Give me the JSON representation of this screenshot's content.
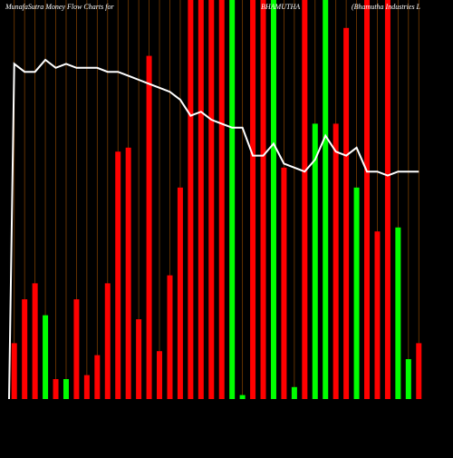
{
  "chart_data": {
    "type": "bar",
    "title": "MunafaSutra  Money Flow  Charts for",
    "symbol": "BHAMUTHA",
    "company": "(Bhamutha  Industries  L",
    "ylim": [
      0,
      100
    ],
    "values": [
      14,
      25,
      29,
      21,
      5,
      5,
      25,
      6,
      11,
      29,
      62,
      63,
      20,
      86,
      12,
      31,
      53,
      100,
      100,
      100,
      100,
      100,
      1,
      100,
      100,
      100,
      58,
      3,
      100,
      69,
      100,
      69,
      93,
      53,
      100,
      42,
      100,
      43,
      10,
      14
    ],
    "colors": [
      "#ff0000",
      "#ff0000",
      "#ff0000",
      "#00ff00",
      "#ff0000",
      "#00ff00",
      "#ff0000",
      "#ff0000",
      "#ff0000",
      "#ff0000",
      "#ff0000",
      "#ff0000",
      "#ff0000",
      "#ff0000",
      "#ff0000",
      "#ff0000",
      "#ff0000",
      "#ff0000",
      "#ff0000",
      "#ff0000",
      "#ff0000",
      "#00ff00",
      "#00ff00",
      "#ff0000",
      "#ff0000",
      "#00ff00",
      "#ff0000",
      "#00ff00",
      "#ff0000",
      "#00ff00",
      "#00ff00",
      "#ff0000",
      "#ff0000",
      "#00ff00",
      "#ff0000",
      "#ff0000",
      "#ff0000",
      "#00ff00",
      "#00ff00",
      "#ff0000"
    ],
    "line": {
      "color": "#ffffff",
      "values": [
        84,
        82,
        82,
        85,
        83,
        84,
        83,
        83,
        83,
        82,
        82,
        81,
        80,
        79,
        78,
        77,
        75,
        71,
        72,
        70,
        69,
        68,
        68,
        61,
        61,
        64,
        59,
        58,
        57,
        60,
        66,
        62,
        61,
        63,
        57,
        57,
        56,
        57,
        57,
        57
      ]
    }
  }
}
